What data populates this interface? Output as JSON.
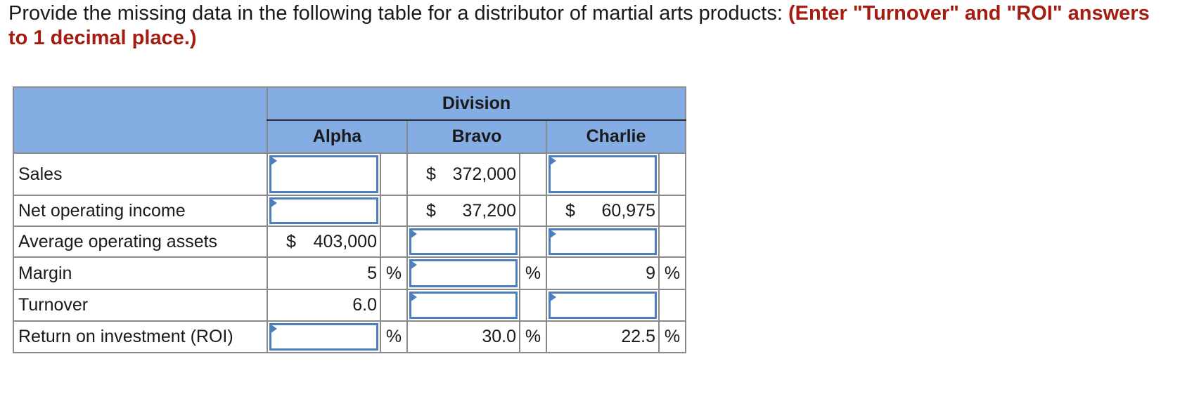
{
  "instructions": {
    "text": "Provide the missing data in the following table for a distributor of martial arts products: ",
    "emphasis": "(Enter \"Turnover\" and \"ROI\" answers to 1 decimal place.)"
  },
  "table": {
    "group_header": "Division",
    "columns": [
      "Alpha",
      "Bravo",
      "Charlie"
    ],
    "currency_symbol": "$",
    "percent_symbol": "%",
    "rows": [
      {
        "label": "Sales",
        "alpha": "",
        "bravo": "372,000",
        "charlie": ""
      },
      {
        "label": "Net operating income",
        "alpha": "",
        "bravo": "37,200",
        "charlie": "60,975"
      },
      {
        "label": "Average operating assets",
        "alpha": "403,000",
        "bravo": "",
        "charlie": ""
      },
      {
        "label": "Margin",
        "alpha": "5",
        "bravo": "",
        "charlie": "9"
      },
      {
        "label": "Turnover",
        "alpha": "6.0",
        "bravo": "",
        "charlie": ""
      },
      {
        "label": "Return on investment (ROI)",
        "alpha": "",
        "bravo": "30.0",
        "charlie": "22.5"
      }
    ]
  },
  "colors": {
    "header_bg": "#84aee3",
    "emphasis": "#a51c12",
    "input_border": "#4d7fbf"
  }
}
